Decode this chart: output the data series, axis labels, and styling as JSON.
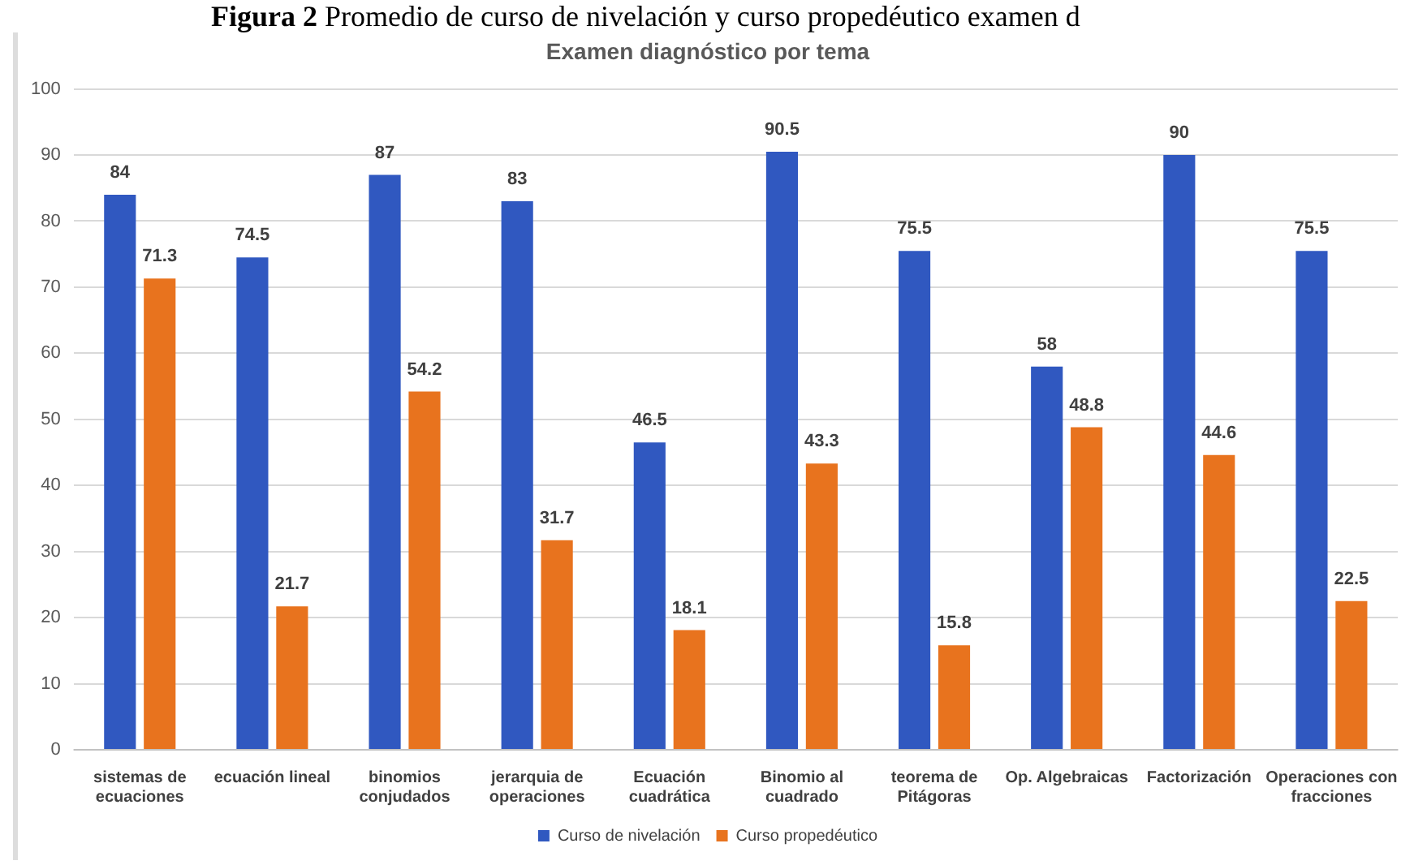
{
  "chart_data": {
    "type": "bar",
    "title": "Examen diagnóstico por tema",
    "annotations": [
      "Figura 2 Promedio de curso de nivelación y curso propedéutico examen d"
    ],
    "categories": [
      "sistemas de ecuaciones",
      "ecuación lineal",
      "binomios conjudados",
      "jerarquia de operaciones",
      "Ecuación cuadrática",
      "Binomio al cuadrado",
      "teorema de Pitágoras",
      "Op. Algebraicas",
      "Factorización",
      "Operaciones con fracciones"
    ],
    "series": [
      {
        "name": "Curso de nivelación",
        "color": "#3058c0",
        "values": [
          84,
          74.5,
          87,
          83,
          46.5,
          90.5,
          75.5,
          58,
          90,
          75.5
        ]
      },
      {
        "name": "Curso propedéutico",
        "color": "#e8731e",
        "values": [
          71.3,
          21.7,
          54.2,
          31.7,
          18.1,
          43.3,
          15.8,
          48.8,
          44.6,
          22.5
        ]
      }
    ],
    "ylim": [
      0,
      100
    ],
    "yticks": [
      0,
      10,
      20,
      30,
      40,
      50,
      60,
      70,
      80,
      90,
      100
    ],
    "grid": "y",
    "legend": "bottom",
    "data_labels": true
  }
}
